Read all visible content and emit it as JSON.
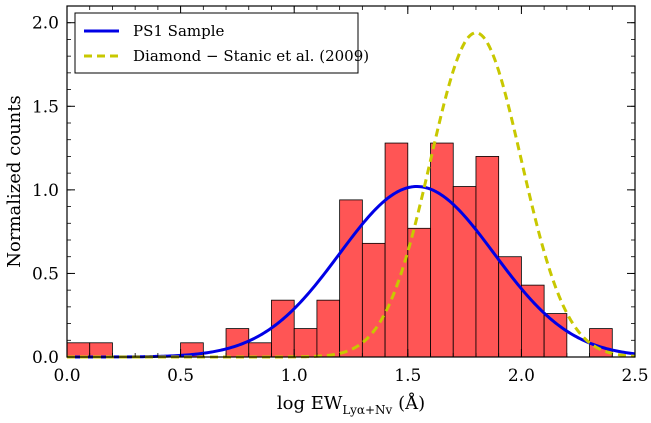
{
  "chart_data": {
    "type": "bar",
    "title": "",
    "xlabel": {
      "prefix": "log EW",
      "subscript": "Lyα+Nv",
      "suffix": " (Å)"
    },
    "ylabel": "Normalized counts",
    "xlim": [
      0.0,
      2.5
    ],
    "ylim": [
      0.0,
      2.1
    ],
    "xticks": [
      {
        "value": 0.0,
        "label": "0.0"
      },
      {
        "value": 0.5,
        "label": "0.5"
      },
      {
        "value": 1.0,
        "label": "1.0"
      },
      {
        "value": 1.5,
        "label": "1.5"
      },
      {
        "value": 2.0,
        "label": "2.0"
      },
      {
        "value": 2.5,
        "label": "2.5"
      }
    ],
    "yticks": [
      {
        "value": 0.0,
        "label": "0.0"
      },
      {
        "value": 0.5,
        "label": "0.5"
      },
      {
        "value": 1.0,
        "label": "1.0"
      },
      {
        "value": 1.5,
        "label": "1.5"
      },
      {
        "value": 2.0,
        "label": "2.0"
      }
    ],
    "grid": false,
    "legend_position": "top-left",
    "histogram": {
      "bin_width": 0.1,
      "color": "#ff4c4c",
      "edge_color": "#000000",
      "bins": [
        {
          "x0": 0.0,
          "value": 0.085
        },
        {
          "x0": 0.1,
          "value": 0.085
        },
        {
          "x0": 0.5,
          "value": 0.085
        },
        {
          "x0": 0.7,
          "value": 0.17
        },
        {
          "x0": 0.8,
          "value": 0.085
        },
        {
          "x0": 0.9,
          "value": 0.34
        },
        {
          "x0": 1.0,
          "value": 0.17
        },
        {
          "x0": 1.1,
          "value": 0.34
        },
        {
          "x0": 1.2,
          "value": 0.94
        },
        {
          "x0": 1.3,
          "value": 0.68
        },
        {
          "x0": 1.4,
          "value": 1.28
        },
        {
          "x0": 1.5,
          "value": 0.77
        },
        {
          "x0": 1.6,
          "value": 1.28
        },
        {
          "x0": 1.7,
          "value": 1.02
        },
        {
          "x0": 1.8,
          "value": 1.2
        },
        {
          "x0": 1.9,
          "value": 0.6
        },
        {
          "x0": 2.0,
          "value": 0.43
        },
        {
          "x0": 2.1,
          "value": 0.26
        },
        {
          "x0": 2.3,
          "value": 0.17
        }
      ]
    },
    "series": [
      {
        "name": "PS1 Sample",
        "type": "gaussian",
        "color": "#0000e6",
        "line_style": "solid",
        "amplitude": 1.02,
        "mean": 1.54,
        "sigma": 0.34
      },
      {
        "name": "Diamond − Stanic et al. (2009)",
        "type": "gaussian",
        "color": "#c8c800",
        "line_style": "dashed",
        "amplitude": 1.94,
        "mean": 1.8,
        "sigma": 0.2
      }
    ]
  }
}
